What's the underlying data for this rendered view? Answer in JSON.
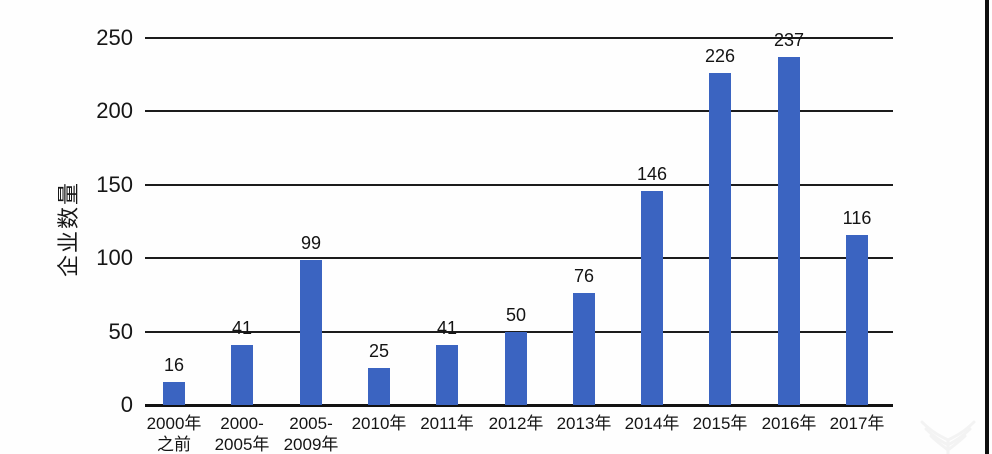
{
  "chart_data": {
    "type": "bar",
    "title": "",
    "xlabel": "",
    "ylabel": "企业数量",
    "categories": [
      "2000年\n之前",
      "2000-\n2005年",
      "2005-\n2009年",
      "2010年",
      "2011年",
      "2012年",
      "2013年",
      "2014年",
      "2015年",
      "2016年",
      "2017年"
    ],
    "values": [
      16,
      41,
      99,
      25,
      41,
      50,
      76,
      146,
      226,
      237,
      116
    ],
    "yticks": [
      0,
      50,
      100,
      150,
      200,
      250
    ],
    "ylim": [
      0,
      250
    ],
    "grid": "horizontal",
    "legend": "none",
    "bar_color": "#3b64c1",
    "data_labels_shown": true
  },
  "decor": {
    "watermark_icon": "wing-logo",
    "watermark_color": "#ebebeb"
  }
}
